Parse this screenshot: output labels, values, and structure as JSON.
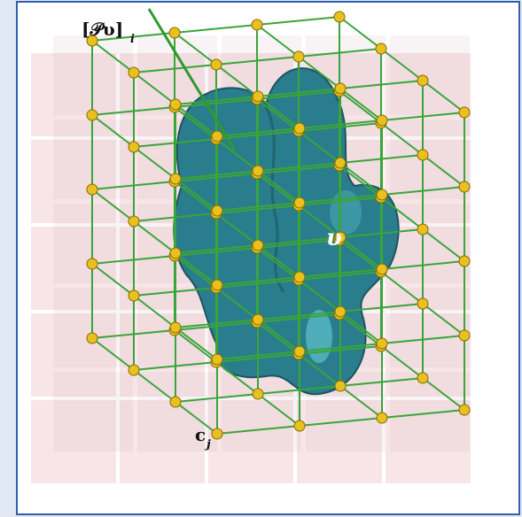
{
  "labels": {
    "projection": "[𝒫υ]",
    "projection_index": "i",
    "field": "υ",
    "node": "c",
    "node_index": "j"
  }
}
